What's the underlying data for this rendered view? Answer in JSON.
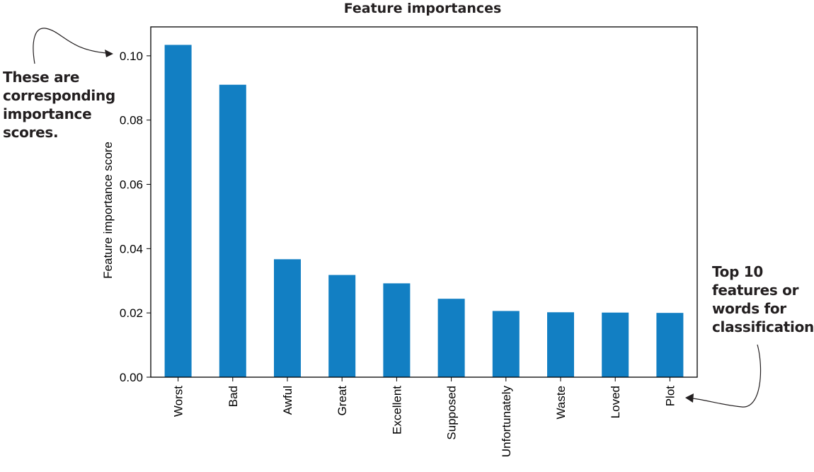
{
  "chart_data": {
    "type": "bar",
    "title": "Feature importances",
    "xlabel": "",
    "ylabel": "Feature importance score",
    "categories": [
      "Worst",
      "Bad",
      "Awful",
      "Great",
      "Excellent",
      "Supposed",
      "Unfortunately",
      "Waste",
      "Loved",
      "Plot"
    ],
    "values": [
      0.1034,
      0.091,
      0.0367,
      0.0318,
      0.0292,
      0.0244,
      0.0206,
      0.0202,
      0.0201,
      0.02
    ],
    "ylim": [
      0,
      0.109
    ],
    "yticks": [
      0.0,
      0.02,
      0.04,
      0.06,
      0.08,
      0.1
    ],
    "ytick_labels": [
      "0.00",
      "0.02",
      "0.04",
      "0.06",
      "0.08",
      "0.10"
    ],
    "grid": false,
    "colors": {
      "bar": "#127fc3",
      "axis": "#000000",
      "annotation": "#231f20"
    }
  },
  "annotations": {
    "left_note": "These are\ncorresponding\nimportance\nscores.",
    "right_note": "Top 10\nfeatures or\nwords for\nclassification"
  }
}
